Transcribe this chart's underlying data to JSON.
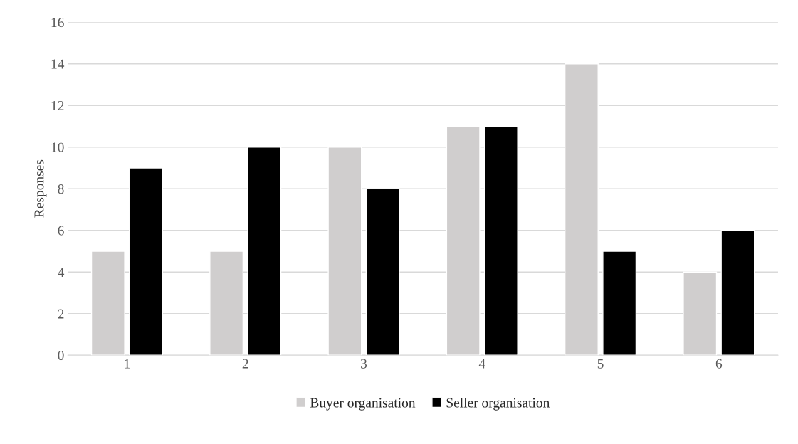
{
  "chart_data": {
    "type": "bar",
    "ylabel": "Responses",
    "categories": [
      "1",
      "2",
      "3",
      "4",
      "5",
      "6"
    ],
    "series": [
      {
        "name": "Buyer organisation",
        "color": "#d0cece",
        "values": [
          5,
          5,
          10,
          11,
          14,
          4
        ]
      },
      {
        "name": "Seller organisation",
        "color": "#000000",
        "values": [
          9,
          10,
          8,
          11,
          5,
          6
        ]
      }
    ],
    "ylim": [
      0,
      16
    ],
    "yticks": [
      0,
      2,
      4,
      6,
      8,
      10,
      12,
      14,
      16
    ],
    "grid": "y",
    "legend": "bottom"
  }
}
